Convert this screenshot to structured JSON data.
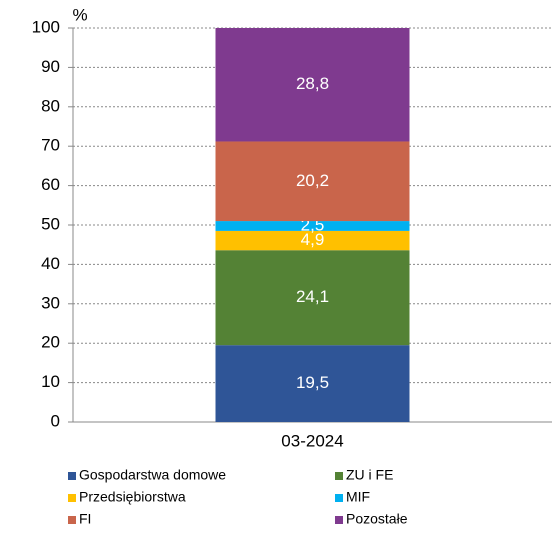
{
  "chart_data": {
    "type": "stacked_bar",
    "y_label": "%",
    "categories": [
      "03-2024"
    ],
    "series": [
      {
        "name": "Gospodarstwa domowe",
        "color": "#2f5597",
        "values": [
          19.5
        ],
        "value_labels": [
          "19,5"
        ]
      },
      {
        "name": "ZU i FE",
        "color": "#548235",
        "values": [
          24.1
        ],
        "value_labels": [
          "24,1"
        ]
      },
      {
        "name": "Przedsiębiorstwa",
        "color": "#ffc000",
        "values": [
          4.9
        ],
        "value_labels": [
          "4,9"
        ]
      },
      {
        "name": "MIF",
        "color": "#00b0f0",
        "values": [
          2.5
        ],
        "value_labels": [
          "2,5"
        ]
      },
      {
        "name": "FI",
        "color": "#c9654b",
        "values": [
          20.2
        ],
        "value_labels": [
          "20,2"
        ]
      },
      {
        "name": "Pozostałe",
        "color": "#7f3a8f",
        "values": [
          28.8
        ],
        "value_labels": [
          "28,8"
        ]
      }
    ],
    "ylim": [
      0,
      100
    ],
    "yticks": [
      0,
      10,
      20,
      30,
      40,
      50,
      60,
      70,
      80,
      90,
      100
    ],
    "grid": true,
    "legend": "bottom"
  }
}
